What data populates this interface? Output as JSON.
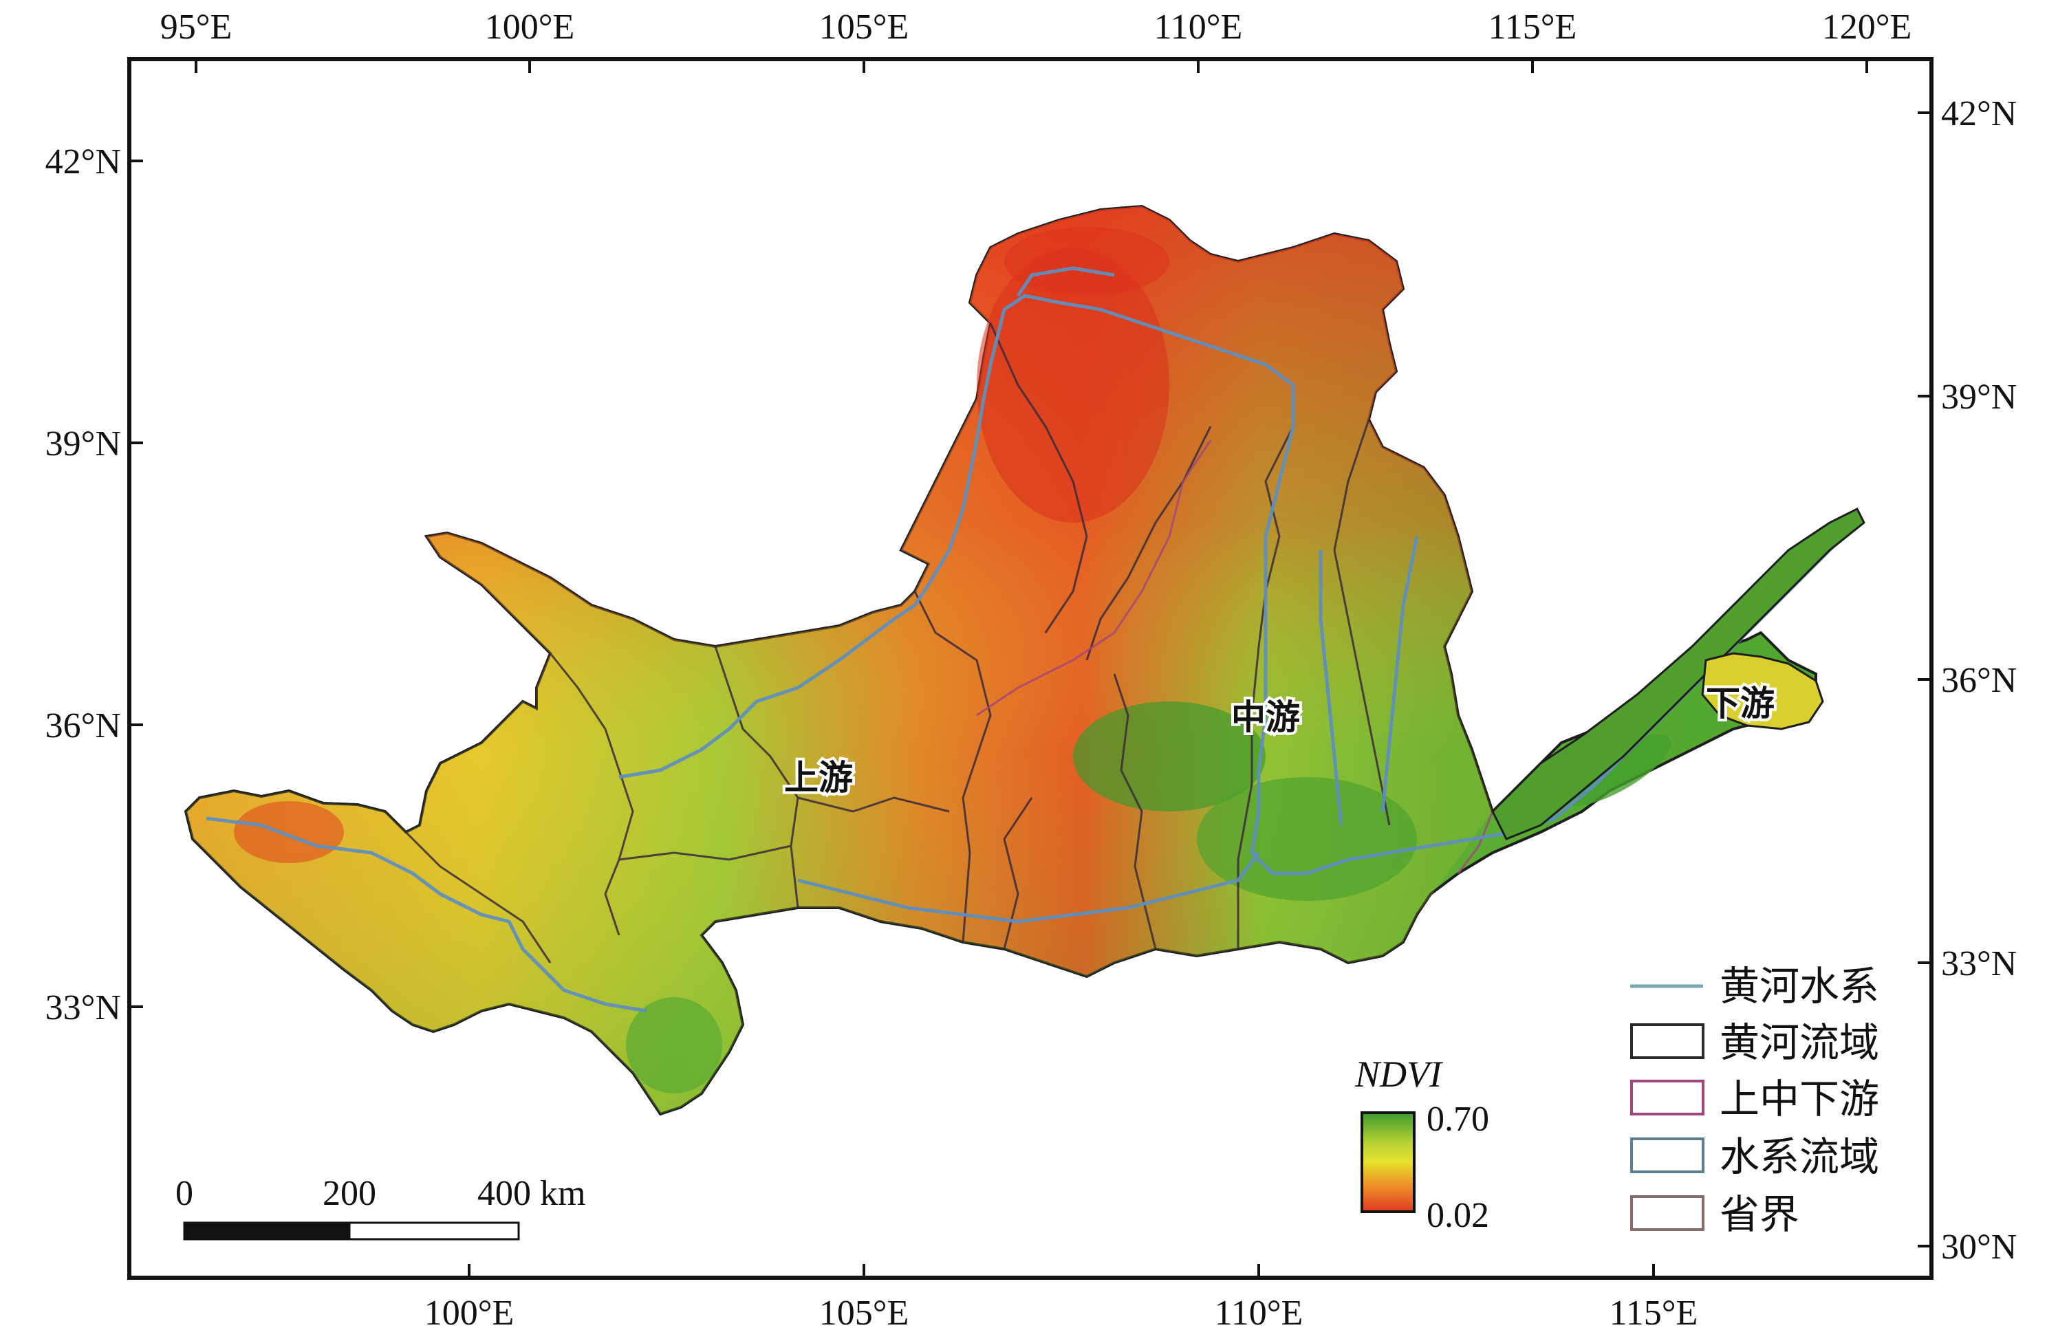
{
  "map": {
    "top_lon_labels": [
      "95°E",
      "100°E",
      "105°E",
      "110°E",
      "115°E",
      "120°E"
    ],
    "bottom_lon_labels": [
      "100°E",
      "105°E",
      "110°E",
      "115°E"
    ],
    "left_lat_labels": [
      "42°N",
      "39°N",
      "36°N",
      "33°N"
    ],
    "right_lat_labels": [
      "42°N",
      "39°N",
      "36°N",
      "33°N",
      "30°N"
    ],
    "region_labels": {
      "upper": "上游",
      "middle": "中游",
      "lower": "下游"
    },
    "scale_bar": {
      "ticks": [
        "0",
        "200",
        "400 km"
      ]
    },
    "ndvi_legend": {
      "title": "NDVI",
      "max": "0.70",
      "min": "0.02",
      "colors": [
        "#3b9a2d",
        "#b7d334",
        "#e8e02c",
        "#ee8b28",
        "#df3a1e"
      ]
    },
    "legend": {
      "items": [
        {
          "label": "黄河水系",
          "symbol": "line",
          "color": "#7aa6b6"
        },
        {
          "label": "黄河流域",
          "symbol": "box",
          "color": "#2a2a2a"
        },
        {
          "label": "上中下游",
          "symbol": "box",
          "color": "#a0457f"
        },
        {
          "label": "水系流域",
          "symbol": "box",
          "color": "#5e7e93"
        },
        {
          "label": "省界",
          "symbol": "box",
          "color": "#8a6b6b"
        }
      ]
    }
  }
}
